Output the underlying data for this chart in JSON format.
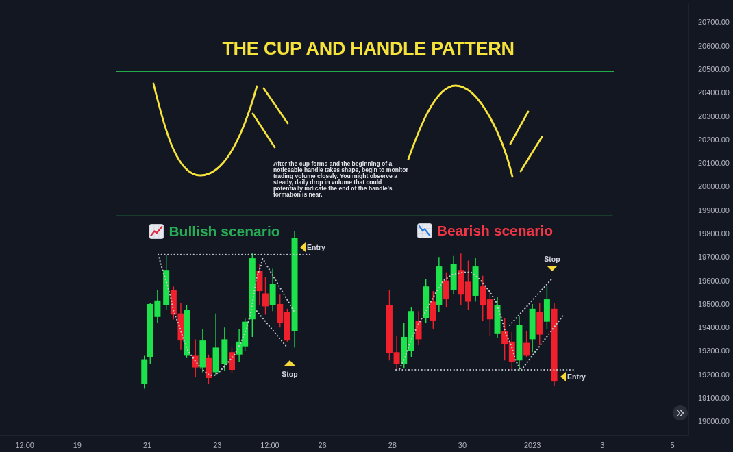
{
  "chart_data": {
    "type": "candlestick",
    "title": "THE CUP AND HANDLE PATTERN",
    "annotations": [
      "Bullish scenario",
      "Bearish scenario",
      "Entry",
      "Stop",
      "Stop",
      "Entry",
      "After the cup forms and the beginning of a\nnoticeable handle takes shape, begin to monitor\ntrading volume closely. You might observe a\nsteady, daily drop in volume that could\npotentially indicate the end of the handle's\nformation is near."
    ],
    "x": [
      "2022-12-20T22:00",
      "2022-12-21T02:00",
      "2022-12-21T07:00",
      "2022-12-21T13:00",
      "2022-12-21T18:00",
      "2022-12-21T23:00",
      "2022-12-22T03:00",
      "2022-12-22T09:00",
      "2022-12-22T14:00",
      "2022-12-22T18:00",
      "2022-12-22T23:00",
      "2022-12-23T05:00",
      "2022-12-23T10:00",
      "2022-12-23T15:00",
      "2022-12-23T19:00",
      "2022-12-24T00:00",
      "2022-12-24T05:00",
      "2022-12-24T09:00",
      "2022-12-24T14:00",
      "2022-12-24T19:00",
      "2022-12-25T00:00",
      "2022-12-25T05:00",
      "2022-12-27T22:00",
      "2022-12-28T03:00",
      "2022-12-28T08:00",
      "2022-12-28T13:00",
      "2022-12-28T18:00",
      "2022-12-28T23:00",
      "2022-12-29T04:00",
      "2022-12-29T08:00",
      "2022-12-29T13:00",
      "2022-12-29T18:00",
      "2022-12-29T23:00",
      "2022-12-30T04:00",
      "2022-12-30T09:00",
      "2022-12-30T14:00",
      "2022-12-30T19:00",
      "2022-12-31T00:00",
      "2022-12-31T05:00",
      "2022-12-31T10:00",
      "2022-12-31T15:00",
      "2022-12-31T20:00",
      "2023-01-01T00:00",
      "2023-01-01T05:00",
      "2023-01-01T10:00",
      "2023-01-01T15:00"
    ],
    "ohlc": [
      [
        19160,
        19280,
        19140,
        19265
      ],
      [
        19275,
        19505,
        19245,
        19500
      ],
      [
        19445,
        19560,
        19420,
        19515
      ],
      [
        19495,
        19710,
        19475,
        19645
      ],
      [
        19560,
        19575,
        19435,
        19455
      ],
      [
        19460,
        19505,
        19305,
        19345
      ],
      [
        19280,
        19495,
        19270,
        19475
      ],
      [
        19280,
        19350,
        19190,
        19230
      ],
      [
        19230,
        19395,
        19210,
        19345
      ],
      [
        19270,
        19285,
        19160,
        19185
      ],
      [
        19210,
        19460,
        19195,
        19315
      ],
      [
        19245,
        19400,
        19215,
        19350
      ],
      [
        19295,
        19315,
        19205,
        19220
      ],
      [
        19285,
        19395,
        19255,
        19340
      ],
      [
        19320,
        19440,
        19300,
        19425
      ],
      [
        19435,
        19715,
        19360,
        19695
      ],
      [
        19640,
        19670,
        19495,
        19555
      ],
      [
        19545,
        19615,
        19455,
        19490
      ],
      [
        19495,
        19650,
        19470,
        19585
      ],
      [
        19500,
        19540,
        19400,
        19420
      ],
      [
        19465,
        19480,
        19340,
        19345
      ],
      [
        19385,
        19810,
        19315,
        19780
      ],
      [
        19495,
        19560,
        19260,
        19290
      ],
      [
        19295,
        19365,
        19220,
        19245
      ],
      [
        19245,
        19420,
        19225,
        19360
      ],
      [
        19300,
        19485,
        19275,
        19470
      ],
      [
        19430,
        19470,
        19325,
        19350
      ],
      [
        19440,
        19605,
        19420,
        19575
      ],
      [
        19510,
        19555,
        19395,
        19430
      ],
      [
        19495,
        19700,
        19465,
        19660
      ],
      [
        19600,
        19635,
        19485,
        19520
      ],
      [
        19560,
        19705,
        19540,
        19670
      ],
      [
        19645,
        19715,
        19495,
        19540
      ],
      [
        19595,
        19685,
        19475,
        19510
      ],
      [
        19535,
        19695,
        19510,
        19660
      ],
      [
        19575,
        19620,
        19430,
        19495
      ],
      [
        19520,
        19550,
        19365,
        19435
      ],
      [
        19375,
        19530,
        19355,
        19495
      ],
      [
        19385,
        19440,
        19260,
        19330
      ],
      [
        19340,
        19380,
        19220,
        19255
      ],
      [
        19260,
        19450,
        19215,
        19410
      ],
      [
        19335,
        19385,
        19275,
        19280
      ],
      [
        19350,
        19500,
        19295,
        19480
      ],
      [
        19465,
        19505,
        19325,
        19370
      ],
      [
        19425,
        19575,
        19395,
        19520
      ],
      [
        19480,
        19505,
        19150,
        19170
      ]
    ],
    "colors": [
      "#1de24b",
      "#1de24b",
      "#1de24b",
      "#1de24b",
      "#f0212c",
      "#f0212c",
      "#1de24b",
      "#f0212c",
      "#1de24b",
      "#f0212c",
      "#1de24b",
      "#1de24b",
      "#f0212c",
      "#1de24b",
      "#1de24b",
      "#1de24b",
      "#f0212c",
      "#f0212c",
      "#1de24b",
      "#f0212c",
      "#f0212c",
      "#1de24b",
      "#f0212c",
      "#f0212c",
      "#1de24b",
      "#1de24b",
      "#f0212c",
      "#1de24b",
      "#f0212c",
      "#1de24b",
      "#f0212c",
      "#1de24b",
      "#f0212c",
      "#f0212c",
      "#1de24b",
      "#f0212c",
      "#f0212c",
      "#1de24b",
      "#f0212c",
      "#f0212c",
      "#1de24b",
      "#f0212c",
      "#1de24b",
      "#f0212c",
      "#1de24b",
      "#f0212c"
    ],
    "series": [
      {
        "type": "line",
        "color": "#c3c6ce",
        "line_style": "dotted",
        "x": [
          "2022-12-21T07:30",
          "2022-12-25T16:00"
        ],
        "values": [
          19710,
          19710
        ]
      },
      {
        "type": "line",
        "color": "#c3c6ce",
        "line_style": "dotted",
        "x": [
          "2022-12-21T07:30",
          "2022-12-21T10:00",
          "2022-12-21T13:00",
          "2022-12-21T16:00",
          "2022-12-21T18:00",
          "2022-12-21T22:00",
          "2022-12-22T01:00",
          "2022-12-22T04:00",
          "2022-12-22T08:00",
          "2022-12-22T13:00",
          "2022-12-22T18:00",
          "2022-12-22T21:30",
          "2022-12-23T02:00",
          "2022-12-23T07:00",
          "2022-12-23T12:00",
          "2022-12-23T16:00",
          "2022-12-23T20:00",
          "2022-12-23T23:00",
          "2022-12-24T01:00",
          "2022-12-24T03:00",
          "2022-12-24T06:00",
          "2022-12-24T07:00"
        ],
        "values": [
          19710,
          19655,
          19595,
          19530,
          19470,
          19405,
          19345,
          19300,
          19265,
          19225,
          19200,
          19195,
          19215,
          19250,
          19285,
          19335,
          19395,
          19465,
          19540,
          19615,
          19665,
          19695
        ]
      },
      {
        "type": "line",
        "color": "#c3c6ce",
        "line_style": "dotted",
        "x": [
          "2022-12-24T07:00",
          "2022-12-25T05:00"
        ],
        "values": [
          19695,
          19465
        ]
      },
      {
        "type": "line",
        "color": "#c3c6ce",
        "line_style": "dotted",
        "x": [
          "2022-12-24T03:00",
          "2022-12-25T00:00"
        ],
        "values": [
          19470,
          19315
        ]
      },
      {
        "type": "line",
        "color": "#c3c6ce",
        "line_style": "dotted",
        "x": [
          "2022-12-28T02:30",
          "2023-01-02T04:00"
        ],
        "values": [
          19220,
          19220
        ]
      },
      {
        "type": "line",
        "color": "#c3c6ce",
        "line_style": "dotted",
        "x": [
          "2022-12-28T05:00",
          "2022-12-28T08:30",
          "2022-12-28T12:00",
          "2022-12-28T17:00",
          "2022-12-28T23:00",
          "2022-12-29T05:00",
          "2022-12-29T11:00",
          "2022-12-29T17:00",
          "2022-12-30T00:00",
          "2022-12-30T06:00",
          "2022-12-30T12:00",
          "2022-12-30T18:30",
          "2022-12-30T23:00",
          "2022-12-31T03:00",
          "2022-12-31T06:00",
          "2022-12-31T09:30",
          "2022-12-31T12:30",
          "2022-12-31T16:00"
        ],
        "values": [
          19225,
          19270,
          19335,
          19405,
          19470,
          19540,
          19600,
          19625,
          19635,
          19635,
          19605,
          19555,
          19510,
          19435,
          19370,
          19325,
          19260,
          19220
        ]
      },
      {
        "type": "line",
        "color": "#c3c6ce",
        "line_style": "dotted",
        "x": [
          "2022-12-31T08:30",
          "2023-01-01T13:00"
        ],
        "values": [
          19410,
          19605
        ]
      },
      {
        "type": "line",
        "color": "#c3c6ce",
        "line_style": "dotted",
        "x": [
          "2022-12-31T16:30",
          "2023-01-01T21:30"
        ],
        "values": [
          19220,
          19455
        ]
      },
      {
        "type": "line",
        "color": "#22ab4a",
        "x": [
          "2022-12-20T03:00",
          "2023-01-03T08:00"
        ],
        "values": [
          20490,
          20490
        ]
      },
      {
        "type": "line",
        "color": "#22ab4a",
        "x": [
          "2022-12-20T03:00",
          "2023-01-03T07:00"
        ],
        "values": [
          19875,
          19875
        ]
      }
    ],
    "xlim": [
      "2022-12-16T19:00",
      "2023-01-05T11:00"
    ],
    "xticks": [
      {
        "value": "2022-12-17T12:00",
        "label": "12:00"
      },
      {
        "value": "2022-12-19",
        "label": "19"
      },
      {
        "value": "2022-12-21",
        "label": "21"
      },
      {
        "value": "2022-12-23",
        "label": "23"
      },
      {
        "value": "2022-12-24T12:00",
        "label": "12:00"
      },
      {
        "value": "2022-12-26",
        "label": "26"
      },
      {
        "value": "2022-12-28",
        "label": "28"
      },
      {
        "value": "2022-12-30",
        "label": "30"
      },
      {
        "value": "2023-01-01",
        "label": "2023"
      },
      {
        "value": "2023-01-03",
        "label": "3"
      },
      {
        "value": "2023-01-05",
        "label": "5"
      }
    ],
    "ylim": [
      18940,
      20780
    ],
    "yticks": [
      {
        "value": 19000,
        "label": "19000.00"
      },
      {
        "value": 19100,
        "label": "19100.00"
      },
      {
        "value": 19200,
        "label": "19200.00"
      },
      {
        "value": 19300,
        "label": "19300.00"
      },
      {
        "value": 19400,
        "label": "19400.00"
      },
      {
        "value": 19500,
        "label": "19500.00"
      },
      {
        "value": 19600,
        "label": "19600.00"
      },
      {
        "value": 19700,
        "label": "19700.00"
      },
      {
        "value": 19800,
        "label": "19800.00"
      },
      {
        "value": 19900,
        "label": "19900.00"
      },
      {
        "value": 20000,
        "label": "20000.00"
      },
      {
        "value": 20100,
        "label": "20100.00"
      },
      {
        "value": 20200,
        "label": "20200.00"
      },
      {
        "value": 20300,
        "label": "20300.00"
      },
      {
        "value": 20400,
        "label": "20400.00"
      },
      {
        "value": 20500,
        "label": "20500.00"
      },
      {
        "value": 20600,
        "label": "20600.00"
      },
      {
        "value": 20700,
        "label": "20700.00"
      }
    ]
  }
}
